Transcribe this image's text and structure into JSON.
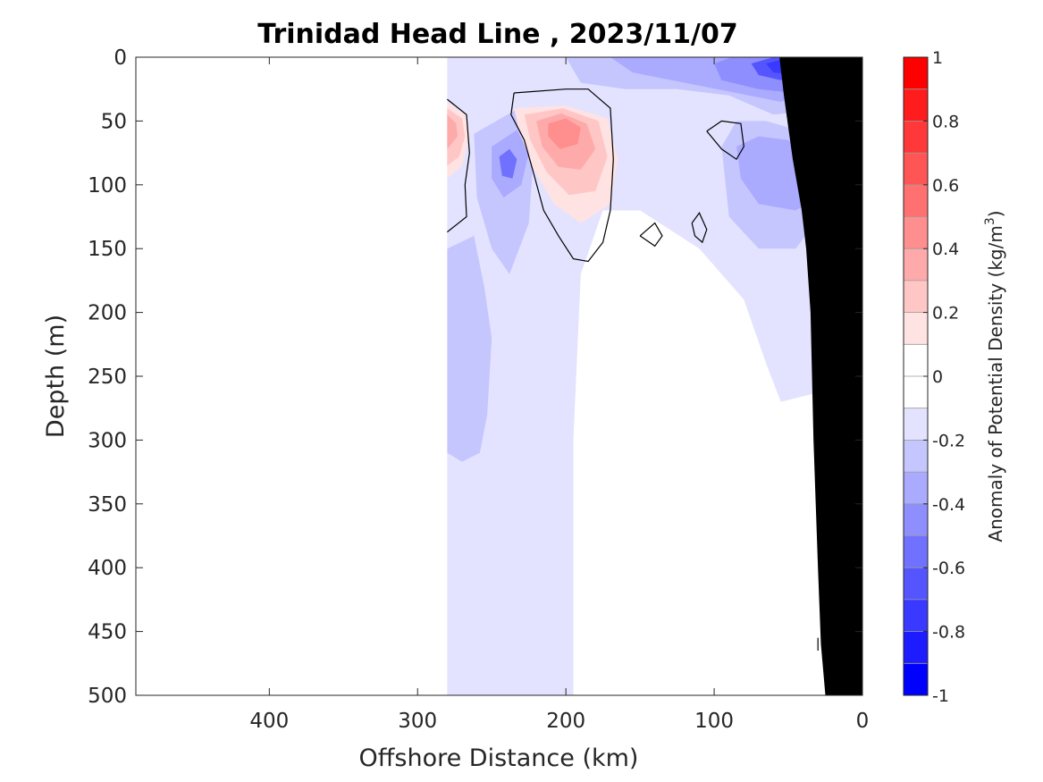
{
  "chart_data": {
    "type": "heatmap",
    "title": "Trinidad Head Line , 2023/11/07",
    "xlabel": "Offshore Distance (km)",
    "ylabel": "Depth (m)",
    "xlim": [
      490,
      0
    ],
    "ylim": [
      0,
      500
    ],
    "x_reversed": true,
    "y_reversed": true,
    "x_ticks": [
      400,
      300,
      200,
      100,
      0
    ],
    "y_ticks": [
      0,
      50,
      100,
      150,
      200,
      250,
      300,
      350,
      400,
      450,
      500
    ],
    "colorbar": {
      "label_pre": "Anomaly of Potential Density (kg/m",
      "label_sup": "3",
      "label_post": ")",
      "range": [
        -1,
        1
      ],
      "ticks": [
        1,
        0.8,
        0.6,
        0.4,
        0.2,
        0,
        -0.2,
        -0.4,
        -0.6,
        -0.8,
        -1
      ],
      "colors": [
        "#ff0000",
        "#ff1c1c",
        "#ff3939",
        "#ff5555",
        "#ff7171",
        "#ff8e8e",
        "#ffaaaa",
        "#ffc6c6",
        "#ffe3e3",
        "#ffffff",
        "#ffffff",
        "#e3e3ff",
        "#c6c6ff",
        "#aaaaff",
        "#8e8eff",
        "#7171ff",
        "#5555ff",
        "#3939ff",
        "#1c1cff",
        "#0000ff"
      ]
    },
    "data_coverage_x": [
      280,
      20
    ],
    "regions": [
      {
        "level": -0.2,
        "color": "#e3e3ff",
        "points": [
          [
            280,
            0
          ],
          [
            20,
            0
          ],
          [
            20,
            260
          ],
          [
            55,
            270
          ],
          [
            65,
            240
          ],
          [
            80,
            190
          ],
          [
            110,
            150
          ],
          [
            150,
            120
          ],
          [
            175,
            120
          ],
          [
            190,
            170
          ],
          [
            195,
            300
          ],
          [
            195,
            500
          ],
          [
            280,
            500
          ]
        ]
      },
      {
        "level": -0.3,
        "color": "#c6c6ff",
        "points": [
          [
            280,
            150
          ],
          [
            262,
            140
          ],
          [
            255,
            180
          ],
          [
            250,
            220
          ],
          [
            253,
            280
          ],
          [
            258,
            310
          ],
          [
            270,
            317
          ],
          [
            280,
            310
          ]
        ]
      },
      {
        "level": -0.3,
        "color": "#c6c6ff",
        "points": [
          [
            262,
            60
          ],
          [
            232,
            40
          ],
          [
            222,
            80
          ],
          [
            225,
            130
          ],
          [
            238,
            170
          ],
          [
            250,
            150
          ],
          [
            260,
            110
          ]
        ]
      },
      {
        "level": -0.3,
        "color": "#c6c6ff",
        "points": [
          [
            200,
            0
          ],
          [
            20,
            0
          ],
          [
            20,
            40
          ],
          [
            60,
            45
          ],
          [
            90,
            30
          ],
          [
            125,
            25
          ],
          [
            160,
            25
          ],
          [
            190,
            20
          ]
        ]
      },
      {
        "level": -0.3,
        "color": "#c6c6ff",
        "points": [
          [
            95,
            70
          ],
          [
            85,
            50
          ],
          [
            65,
            50
          ],
          [
            35,
            60
          ],
          [
            28,
            100
          ],
          [
            32,
            130
          ],
          [
            45,
            150
          ],
          [
            70,
            150
          ],
          [
            90,
            125
          ]
        ]
      },
      {
        "level": -0.4,
        "color": "#aaaaff",
        "points": [
          [
            250,
            70
          ],
          [
            233,
            57
          ],
          [
            225,
            75
          ],
          [
            230,
            100
          ],
          [
            242,
            110
          ],
          [
            250,
            95
          ]
        ]
      },
      {
        "level": -0.4,
        "color": "#aaaaff",
        "points": [
          [
            170,
            0
          ],
          [
            35,
            0
          ],
          [
            30,
            25
          ],
          [
            55,
            35
          ],
          [
            85,
            28
          ],
          [
            120,
            20
          ],
          [
            155,
            12
          ]
        ]
      },
      {
        "level": -0.4,
        "color": "#aaaaff",
        "points": [
          [
            85,
            70
          ],
          [
            70,
            62
          ],
          [
            50,
            65
          ],
          [
            33,
            80
          ],
          [
            30,
            110
          ],
          [
            45,
            120
          ],
          [
            70,
            115
          ],
          [
            82,
            95
          ]
        ]
      },
      {
        "level": -0.6,
        "color": "#8e8eff",
        "points": [
          [
            100,
            5
          ],
          [
            88,
            0
          ],
          [
            50,
            0
          ],
          [
            35,
            5
          ],
          [
            30,
            20
          ],
          [
            45,
            28
          ],
          [
            70,
            25
          ],
          [
            95,
            18
          ]
        ]
      },
      {
        "level": -0.6,
        "color": "#7171ff",
        "points": [
          [
            245,
            78
          ],
          [
            238,
            72
          ],
          [
            233,
            80
          ],
          [
            236,
            95
          ],
          [
            243,
            93
          ]
        ]
      },
      {
        "level": -0.7,
        "color": "#5555ff",
        "points": [
          [
            75,
            5
          ],
          [
            60,
            0
          ],
          [
            45,
            2
          ],
          [
            40,
            12
          ],
          [
            55,
            18
          ],
          [
            70,
            14
          ]
        ]
      },
      {
        "level": -0.8,
        "color": "#3939ff",
        "points": [
          [
            65,
            5
          ],
          [
            55,
            2
          ],
          [
            46,
            6
          ],
          [
            50,
            13
          ],
          [
            60,
            12
          ]
        ]
      },
      {
        "level": 0.2,
        "color": "#ffe3e3",
        "points": [
          [
            280,
            35
          ],
          [
            268,
            45
          ],
          [
            265,
            60
          ],
          [
            270,
            85
          ],
          [
            280,
            95
          ]
        ]
      },
      {
        "level": 0.2,
        "color": "#ffe3e3",
        "points": [
          [
            235,
            40
          ],
          [
            200,
            38
          ],
          [
            172,
            48
          ],
          [
            165,
            80
          ],
          [
            170,
            115
          ],
          [
            190,
            130
          ],
          [
            208,
            115
          ],
          [
            223,
            85
          ],
          [
            232,
            55
          ]
        ]
      },
      {
        "level": 0.3,
        "color": "#ffc6c6",
        "points": [
          [
            280,
            40
          ],
          [
            270,
            48
          ],
          [
            268,
            62
          ],
          [
            272,
            78
          ],
          [
            280,
            85
          ]
        ]
      },
      {
        "level": 0.3,
        "color": "#ffc6c6",
        "points": [
          [
            228,
            45
          ],
          [
            202,
            40
          ],
          [
            178,
            50
          ],
          [
            172,
            78
          ],
          [
            180,
            105
          ],
          [
            198,
            108
          ],
          [
            213,
            90
          ],
          [
            224,
            65
          ]
        ]
      },
      {
        "level": 0.4,
        "color": "#ffaaaa",
        "points": [
          [
            280,
            45
          ],
          [
            274,
            52
          ],
          [
            273,
            62
          ],
          [
            280,
            72
          ]
        ]
      },
      {
        "level": 0.4,
        "color": "#ffaaaa",
        "points": [
          [
            220,
            50
          ],
          [
            203,
            44
          ],
          [
            186,
            52
          ],
          [
            180,
            72
          ],
          [
            190,
            88
          ],
          [
            205,
            86
          ],
          [
            216,
            70
          ]
        ]
      },
      {
        "level": 0.5,
        "color": "#ff8e8e",
        "points": [
          [
            212,
            52
          ],
          [
            200,
            48
          ],
          [
            190,
            55
          ],
          [
            192,
            68
          ],
          [
            204,
            72
          ],
          [
            212,
            62
          ]
        ]
      }
    ],
    "zero_contours": [
      [
        [
          280,
          33
        ],
        [
          267,
          45
        ],
        [
          265,
          75
        ],
        [
          268,
          100
        ],
        [
          267,
          125
        ],
        [
          280,
          137
        ]
      ],
      [
        [
          235,
          28
        ],
        [
          200,
          25
        ],
        [
          185,
          25
        ],
        [
          180,
          30
        ],
        [
          170,
          40
        ],
        [
          168,
          80
        ],
        [
          170,
          120
        ],
        [
          175,
          145
        ],
        [
          185,
          160
        ],
        [
          195,
          158
        ],
        [
          205,
          140
        ],
        [
          215,
          120
        ],
        [
          222,
          90
        ],
        [
          228,
          65
        ],
        [
          237,
          45
        ],
        [
          235,
          28
        ]
      ],
      [
        [
          105,
          58
        ],
        [
          95,
          50
        ],
        [
          82,
          52
        ],
        [
          80,
          70
        ],
        [
          85,
          80
        ],
        [
          95,
          72
        ],
        [
          105,
          58
        ]
      ],
      [
        [
          150,
          140
        ],
        [
          140,
          130
        ],
        [
          135,
          140
        ],
        [
          140,
          148
        ],
        [
          150,
          140
        ]
      ],
      [
        [
          115,
          130
        ],
        [
          110,
          122
        ],
        [
          105,
          135
        ],
        [
          108,
          145
        ],
        [
          113,
          140
        ],
        [
          115,
          130
        ]
      ],
      [
        [
          30,
          455
        ],
        [
          30,
          465
        ]
      ]
    ],
    "bathymetry": [
      [
        25,
        500
      ],
      [
        28,
        460
      ],
      [
        30,
        400
      ],
      [
        33,
        300
      ],
      [
        35,
        200
      ],
      [
        38,
        150
      ],
      [
        41,
        120
      ],
      [
        44,
        100
      ],
      [
        47,
        80
      ],
      [
        50,
        55
      ],
      [
        53,
        30
      ],
      [
        56,
        0
      ]
    ]
  }
}
